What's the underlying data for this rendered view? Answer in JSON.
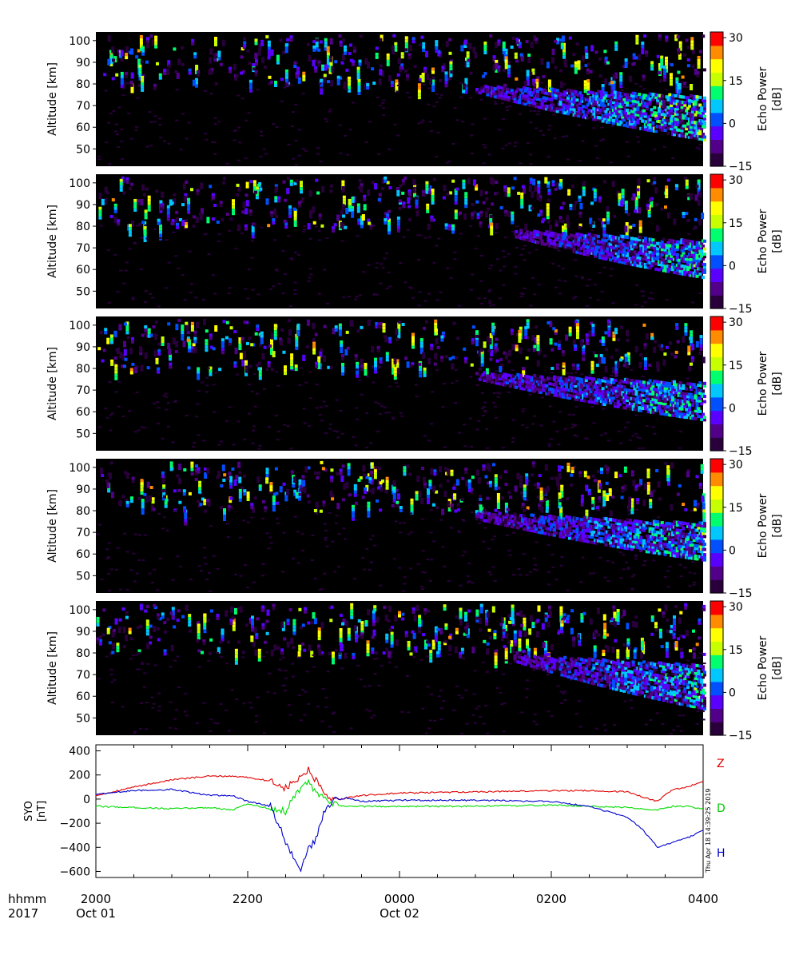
{
  "colors": {
    "panel_background": "#000000",
    "colormap": [
      "#2a003c",
      "#52008a",
      "#5a00ff",
      "#0050ff",
      "#00c8ff",
      "#00ff6e",
      "#c8ff00",
      "#ffff00",
      "#ff8c00",
      "#ff0000"
    ],
    "Z": "#e00000",
    "D": "#00dd00",
    "H": "#0000cc"
  },
  "chart_data": [
    {
      "type": "heatmap",
      "panel": 1,
      "ylabel": "Altitude [km]",
      "yticks": [
        "100",
        "90",
        "80",
        "70",
        "60",
        "50"
      ],
      "ylim": [
        42,
        104
      ],
      "colorbar": {
        "label_line1": "Echo Power",
        "label_line2": "[dB]",
        "ticks": [
          "30",
          "15",
          "0",
          "−15"
        ],
        "range": [
          -15,
          32
        ]
      },
      "echo_layer": {
        "start_time": "0100",
        "end_time": "0400",
        "top_altitude_km": 80,
        "bottom_altitude_km": 58,
        "peak_power_db": 15
      },
      "seed": 11
    },
    {
      "type": "heatmap",
      "panel": 2,
      "ylabel": "Altitude [km]",
      "yticks": [
        "100",
        "90",
        "80",
        "70",
        "60",
        "50"
      ],
      "ylim": [
        42,
        104
      ],
      "colorbar": {
        "label_line1": "Echo Power",
        "label_line2": "[dB]",
        "ticks": [
          "30",
          "15",
          "0",
          "−15"
        ],
        "range": [
          -15,
          32
        ]
      },
      "echo_layer": {
        "start_time": "0130",
        "end_time": "0400",
        "top_altitude_km": 79,
        "bottom_altitude_km": 60,
        "peak_power_db": 12
      },
      "seed": 23
    },
    {
      "type": "heatmap",
      "panel": 3,
      "ylabel": "Altitude [km]",
      "yticks": [
        "100",
        "90",
        "80",
        "70",
        "60",
        "50"
      ],
      "ylim": [
        42,
        104
      ],
      "colorbar": {
        "label_line1": "Echo Power",
        "label_line2": "[dB]",
        "ticks": [
          "30",
          "15",
          "0",
          "−15"
        ],
        "range": [
          -15,
          32
        ]
      },
      "echo_layer": {
        "start_time": "0100",
        "end_time": "0400",
        "top_altitude_km": 79,
        "bottom_altitude_km": 60,
        "peak_power_db": 12
      },
      "seed": 37
    },
    {
      "type": "heatmap",
      "panel": 4,
      "ylabel": "Altitude [km]",
      "yticks": [
        "100",
        "90",
        "80",
        "70",
        "60",
        "50"
      ],
      "ylim": [
        42,
        104
      ],
      "colorbar": {
        "label_line1": "Echo Power",
        "label_line2": "[dB]",
        "ticks": [
          "30",
          "15",
          "0",
          "−15"
        ],
        "range": [
          -15,
          32
        ]
      },
      "echo_layer": {
        "start_time": "0100",
        "end_time": "0400",
        "top_altitude_km": 80,
        "bottom_altitude_km": 61,
        "peak_power_db": 12
      },
      "seed": 53
    },
    {
      "type": "heatmap",
      "panel": 5,
      "ylabel": "Altitude [km]",
      "yticks": [
        "100",
        "90",
        "80",
        "70",
        "60",
        "50"
      ],
      "ylim": [
        42,
        104
      ],
      "colorbar": {
        "label_line1": "Echo Power",
        "label_line2": "[dB]",
        "ticks": [
          "30",
          "15",
          "0",
          "−15"
        ],
        "range": [
          -15,
          32
        ]
      },
      "echo_layer": {
        "start_time": "0130",
        "end_time": "0400",
        "top_altitude_km": 80,
        "bottom_altitude_km": 58,
        "peak_power_db": 12
      },
      "seed": 71
    },
    {
      "type": "line",
      "panel": 6,
      "ylabel_line1": "SYO",
      "ylabel_line2": "[nT]",
      "yticks": [
        "400",
        "200",
        "0",
        "−200",
        "−400",
        "−600"
      ],
      "ylim": [
        -650,
        450
      ],
      "timestamp": "Thu Apr 18 14:39:25 2019",
      "series": [
        {
          "name": "Z",
          "t_hours": [
            0,
            0.5,
            1,
            1.5,
            1.8,
            2,
            2.3,
            2.5,
            2.7,
            2.8,
            2.9,
            3.0,
            3.1,
            3.3,
            3.5,
            4,
            5,
            6,
            6.5,
            7,
            7.2,
            7.4,
            7.5,
            7.6,
            7.8,
            8
          ],
          "values": [
            30,
            100,
            160,
            190,
            190,
            180,
            150,
            90,
            180,
            240,
            150,
            50,
            -20,
            10,
            30,
            50,
            60,
            70,
            70,
            60,
            20,
            -20,
            40,
            80,
            100,
            150
          ]
        },
        {
          "name": "D",
          "t_hours": [
            0,
            0.5,
            1,
            1.5,
            1.8,
            2,
            2.3,
            2.5,
            2.7,
            2.8,
            2.9,
            3.0,
            3.1,
            3.3,
            3.5,
            4,
            5,
            6,
            6.5,
            7,
            7.2,
            7.4,
            7.5,
            7.6,
            7.8,
            8
          ],
          "values": [
            -60,
            -70,
            -80,
            -70,
            -90,
            -40,
            -80,
            -100,
            100,
            130,
            60,
            0,
            -40,
            -60,
            -60,
            -60,
            -60,
            -50,
            -60,
            -70,
            -80,
            -90,
            -70,
            -60,
            -60,
            -80
          ]
        },
        {
          "name": "H",
          "t_hours": [
            0,
            0.5,
            1,
            1.5,
            1.8,
            2,
            2.3,
            2.5,
            2.7,
            2.8,
            2.9,
            3.0,
            3.1,
            3.3,
            3.5,
            4,
            5,
            6,
            6.5,
            7,
            7.2,
            7.4,
            7.5,
            7.6,
            7.8,
            8
          ],
          "values": [
            40,
            70,
            80,
            30,
            30,
            -20,
            -60,
            -350,
            -580,
            -420,
            -340,
            -120,
            -20,
            10,
            -20,
            -10,
            -10,
            -20,
            -60,
            -150,
            -250,
            -400,
            -380,
            -360,
            -320,
            -260
          ]
        }
      ]
    }
  ],
  "xaxis": {
    "corner_label_1": "hhmm",
    "corner_label_2": "2017",
    "tick_labels": [
      {
        "time": "2000",
        "date": "Oct 01"
      },
      {
        "time": "2200",
        "date": ""
      },
      {
        "time": "0000",
        "date": "Oct 02"
      },
      {
        "time": "0200",
        "date": ""
      },
      {
        "time": "0400",
        "date": ""
      }
    ]
  }
}
